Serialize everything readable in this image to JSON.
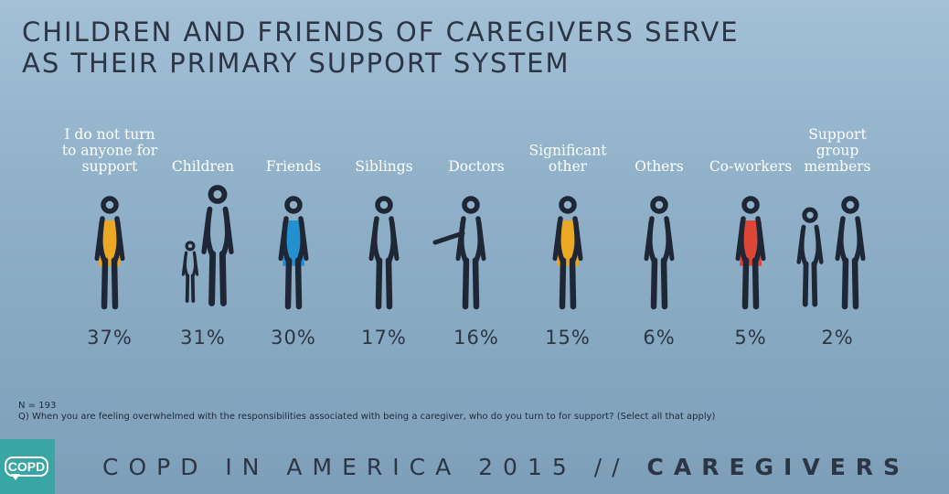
{
  "title_lines": [
    "CHILDREN AND FRIENDS OF CAREGIVERS SERVE",
    "AS THEIR PRIMARY SUPPORT SYSTEM"
  ],
  "chart_data": {
    "type": "bar",
    "unit": "%",
    "categories": [
      [
        "I do not turn",
        "to anyone for",
        "support"
      ],
      [
        "Children"
      ],
      [
        "Friends"
      ],
      [
        "Siblings"
      ],
      [
        "Doctors"
      ],
      [
        "Significant",
        "other"
      ],
      [
        "Others"
      ],
      [
        "Co-workers"
      ],
      [
        "Support",
        "group",
        "members"
      ]
    ],
    "values": [
      37,
      31,
      30,
      17,
      16,
      15,
      6,
      5,
      2
    ],
    "value_labels": [
      "37%",
      "31%",
      "30%",
      "17%",
      "16%",
      "15%",
      "6%",
      "5%",
      "2%"
    ],
    "figures": [
      "person-yellow",
      "child-and-adult",
      "person-blue",
      "person",
      "person-pointing",
      "person-yellow",
      "person",
      "person-red",
      "two-people"
    ],
    "accent_colors": {
      "yellow": "#f0a81c",
      "blue": "#1d8fd0",
      "red": "#e2402f",
      "ink": "#1f2636"
    }
  },
  "notes": {
    "n": "N = 193",
    "question": "Q) When you are feeling overwhelmed with the responsibilities associated with being a caregiver, who do you turn to for support? (Select all that apply)"
  },
  "footer": {
    "logo_text": "COPD",
    "brand_regular": "COPD IN AMERICA 2015 // ",
    "brand_bold": "CAREGIVERS"
  }
}
